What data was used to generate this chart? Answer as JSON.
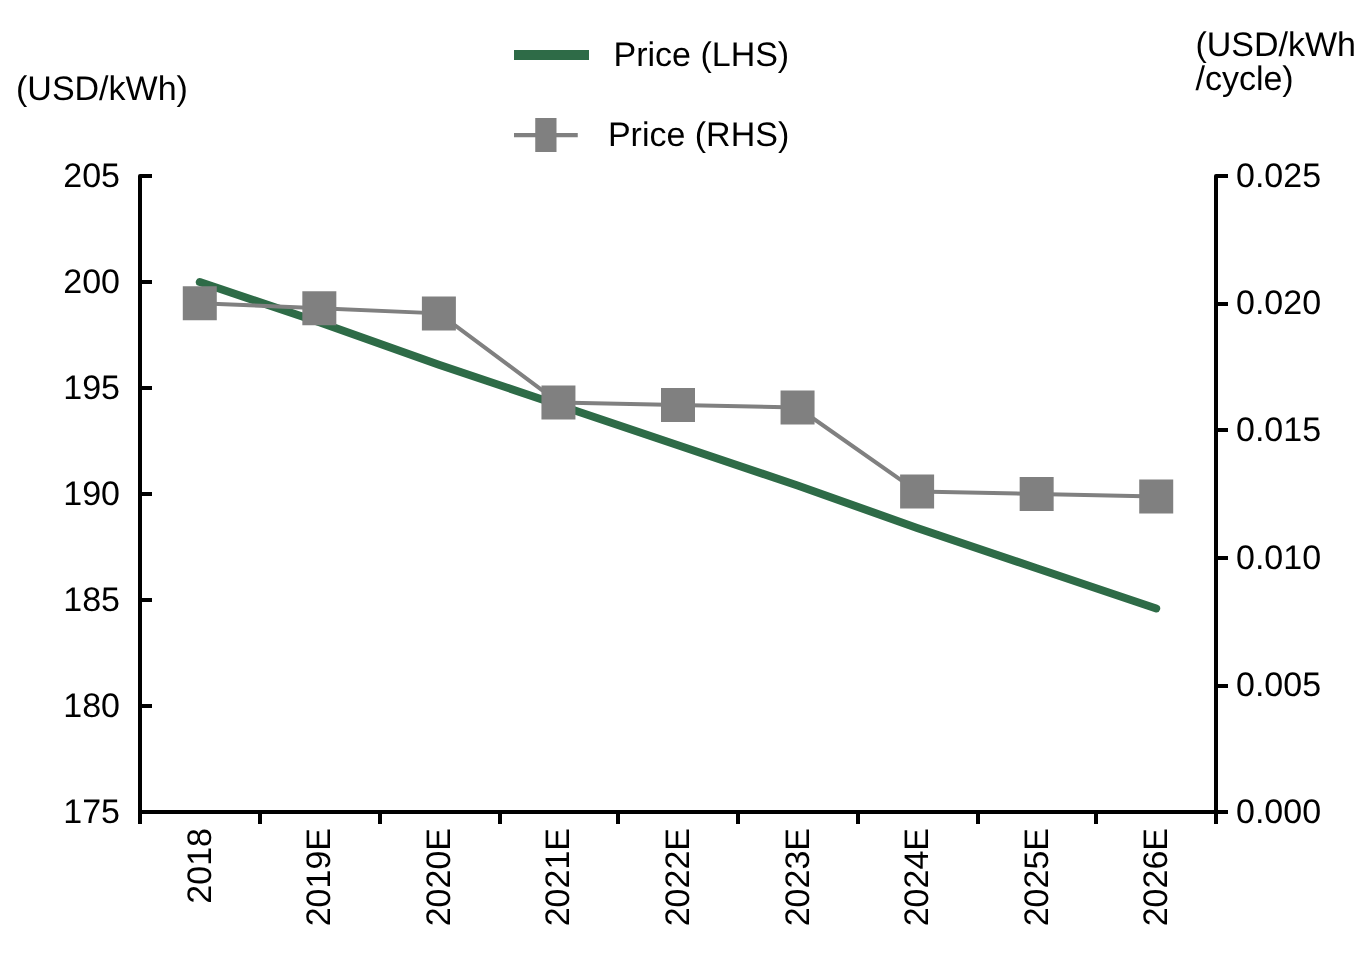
{
  "chart_data": {
    "type": "line",
    "ylabel": "(USD/kWh)",
    "y2label": "(USD/kWh\n/cycle)",
    "categories": [
      "2018",
      "2019E",
      "2020E",
      "2021E",
      "2022E",
      "2023E",
      "2024E",
      "2025E",
      "2026E"
    ],
    "series": [
      {
        "name": "Price (LHS)",
        "color": "#2e6b47",
        "marker": "none",
        "values": [
          200,
          198.1,
          196.1,
          194.2,
          192.3,
          190.4,
          188.4,
          186.5,
          184.6
        ]
      },
      {
        "name": "Price (RHS)",
        "color": "#808080",
        "marker": "square",
        "axis": "y2",
        "values": [
          0.02,
          0.0198,
          0.0196,
          0.0161,
          0.016,
          0.0159,
          0.0126,
          0.0125,
          0.0124
        ]
      }
    ],
    "ylim": [
      175,
      205
    ],
    "yticks": [
      175,
      180,
      185,
      190,
      195,
      200,
      205
    ],
    "y2lim": [
      0,
      0.025
    ],
    "y2ticks": [
      {
        "value": 0,
        "label": "0.000"
      },
      {
        "value": 0.005,
        "label": "0.005"
      },
      {
        "value": 0.01,
        "label": "0.010"
      },
      {
        "value": 0.015,
        "label": "0.015"
      },
      {
        "value": 0.02,
        "label": "0.020"
      },
      {
        "value": 0.025,
        "label": "0.025"
      }
    ],
    "grid": false,
    "legend": "top"
  }
}
